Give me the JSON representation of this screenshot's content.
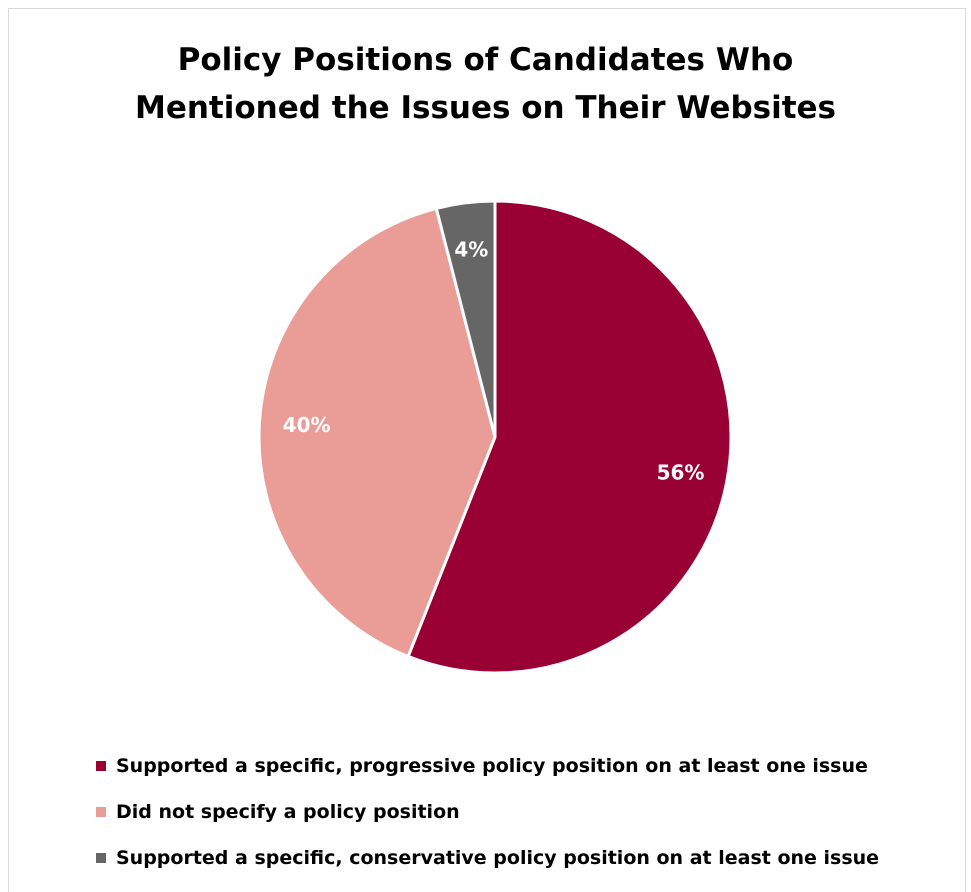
{
  "chart_data": {
    "type": "pie",
    "title": [
      "Policy Positions of Candidates Who",
      "Mentioned the Issues on Their Websites"
    ],
    "slices": [
      {
        "label": "Supported a specific, progressive policy position on at least one issue",
        "value": 56,
        "display": "56%",
        "color": "#990033"
      },
      {
        "label": "Did not specify a policy position",
        "value": 40,
        "display": "40%",
        "color": "#ea9c97"
      },
      {
        "label": "Supported a specific, conservative policy position on at least one issue",
        "value": 4,
        "display": "4%",
        "color": "#666666"
      }
    ],
    "legend_position": "bottom"
  }
}
